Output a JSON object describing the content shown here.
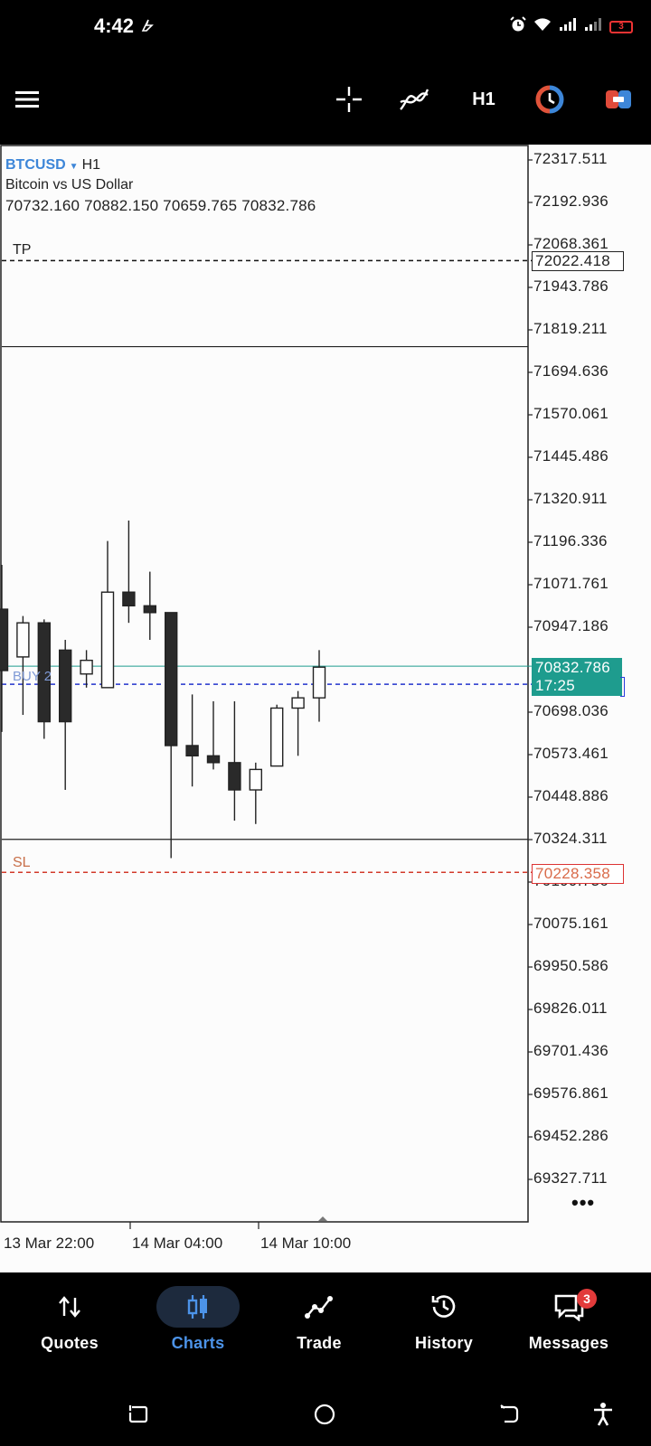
{
  "status_bar": {
    "time": "4:42",
    "battery_level": "3",
    "icons": [
      "alarm-icon",
      "wifi-icon",
      "signal-icon",
      "signal-icon",
      "battery-icon"
    ]
  },
  "toolbar": {
    "menu_icon": "hamburger-icon",
    "crosshair_icon": "crosshair-icon",
    "indicators_icon": "indicator-icon",
    "timeframe": "H1",
    "objects_icon": "chart-objects-icon",
    "trade_icon": "one-click-trade-icon"
  },
  "symbol": {
    "name": "BTCUSD",
    "timeframe": "H1",
    "description": "Bitcoin vs US Dollar",
    "ohlc": "70732.160 70882.150 70659.765 70832.786"
  },
  "order_labels": {
    "tp": "TP",
    "sl": "SL",
    "buy": "BUY 2"
  },
  "price_scale": [
    "72317.511",
    "72192.936",
    "72068.361",
    "71943.786",
    "71819.211",
    "71694.636",
    "71570.061",
    "71445.486",
    "71320.911",
    "71196.336",
    "71071.761",
    "70947.186",
    "70698.036",
    "70573.461",
    "70448.886",
    "70324.311",
    "70199.736",
    "70075.161",
    "69950.586",
    "69826.011",
    "69701.436",
    "69576.861",
    "69452.286",
    "69327.711"
  ],
  "price_boxes": {
    "tp": "72022.418",
    "sl": "70228.358",
    "bid": "70832.786",
    "countdown": "17:25"
  },
  "time_labels": [
    "13 Mar 22:00",
    "14 Mar 04:00",
    "14 Mar 10:00"
  ],
  "more_icon": "more-dots-icon",
  "chart_data": {
    "type": "candlestick",
    "symbol": "BTCUSD",
    "timeframe": "H1",
    "ylim": [
      69280,
      72360
    ],
    "candles": [
      {
        "o": 71000,
        "h": 71130,
        "l": 70640,
        "c": 70820
      },
      {
        "o": 70860,
        "h": 70980,
        "l": 70690,
        "c": 70960
      },
      {
        "o": 70960,
        "h": 70970,
        "l": 70620,
        "c": 70670
      },
      {
        "o": 70880,
        "h": 70910,
        "l": 70470,
        "c": 70670
      },
      {
        "o": 70810,
        "h": 70880,
        "l": 70770,
        "c": 70850
      },
      {
        "o": 70770,
        "h": 71200,
        "l": 70770,
        "c": 71050
      },
      {
        "o": 71050,
        "h": 71260,
        "l": 70960,
        "c": 71010
      },
      {
        "o": 71010,
        "h": 71110,
        "l": 70910,
        "c": 70990
      },
      {
        "o": 70990,
        "h": 70990,
        "l": 70270,
        "c": 70600
      },
      {
        "o": 70600,
        "h": 70750,
        "l": 70480,
        "c": 70570
      },
      {
        "o": 70570,
        "h": 70730,
        "l": 70530,
        "c": 70550
      },
      {
        "o": 70550,
        "h": 70730,
        "l": 70380,
        "c": 70470
      },
      {
        "o": 70470,
        "h": 70550,
        "l": 70370,
        "c": 70530
      },
      {
        "o": 70540,
        "h": 70720,
        "l": 70540,
        "c": 70710
      },
      {
        "o": 70710,
        "h": 70760,
        "l": 70570,
        "c": 70740
      },
      {
        "o": 70740,
        "h": 70880,
        "l": 70670,
        "c": 70830
      }
    ],
    "levels": {
      "tp": 72022.418,
      "sl": 70228.358,
      "buy": 70780,
      "bid": 70832.786,
      "upper_line": 71770,
      "lower_line": 70325
    },
    "colors": {
      "bull_fill": "#ffffff",
      "bear_fill": "#2a2a2a",
      "tp_line": "#111111",
      "sl_line": "#d23a2a",
      "buy_line": "#2233cc",
      "bid_line": "#1e9c8e"
    }
  },
  "bottom_nav": {
    "items": [
      {
        "label": "Quotes",
        "icon": "quotes-arrows-icon"
      },
      {
        "label": "Charts",
        "icon": "candlestick-icon"
      },
      {
        "label": "Trade",
        "icon": "trade-line-icon"
      },
      {
        "label": "History",
        "icon": "history-clock-icon"
      },
      {
        "label": "Messages",
        "icon": "messages-icon",
        "badge": "3"
      }
    ]
  },
  "system_nav": {
    "icons": [
      "rotate-icon",
      "home-icon",
      "back-icon",
      "accessibility-icon"
    ]
  }
}
